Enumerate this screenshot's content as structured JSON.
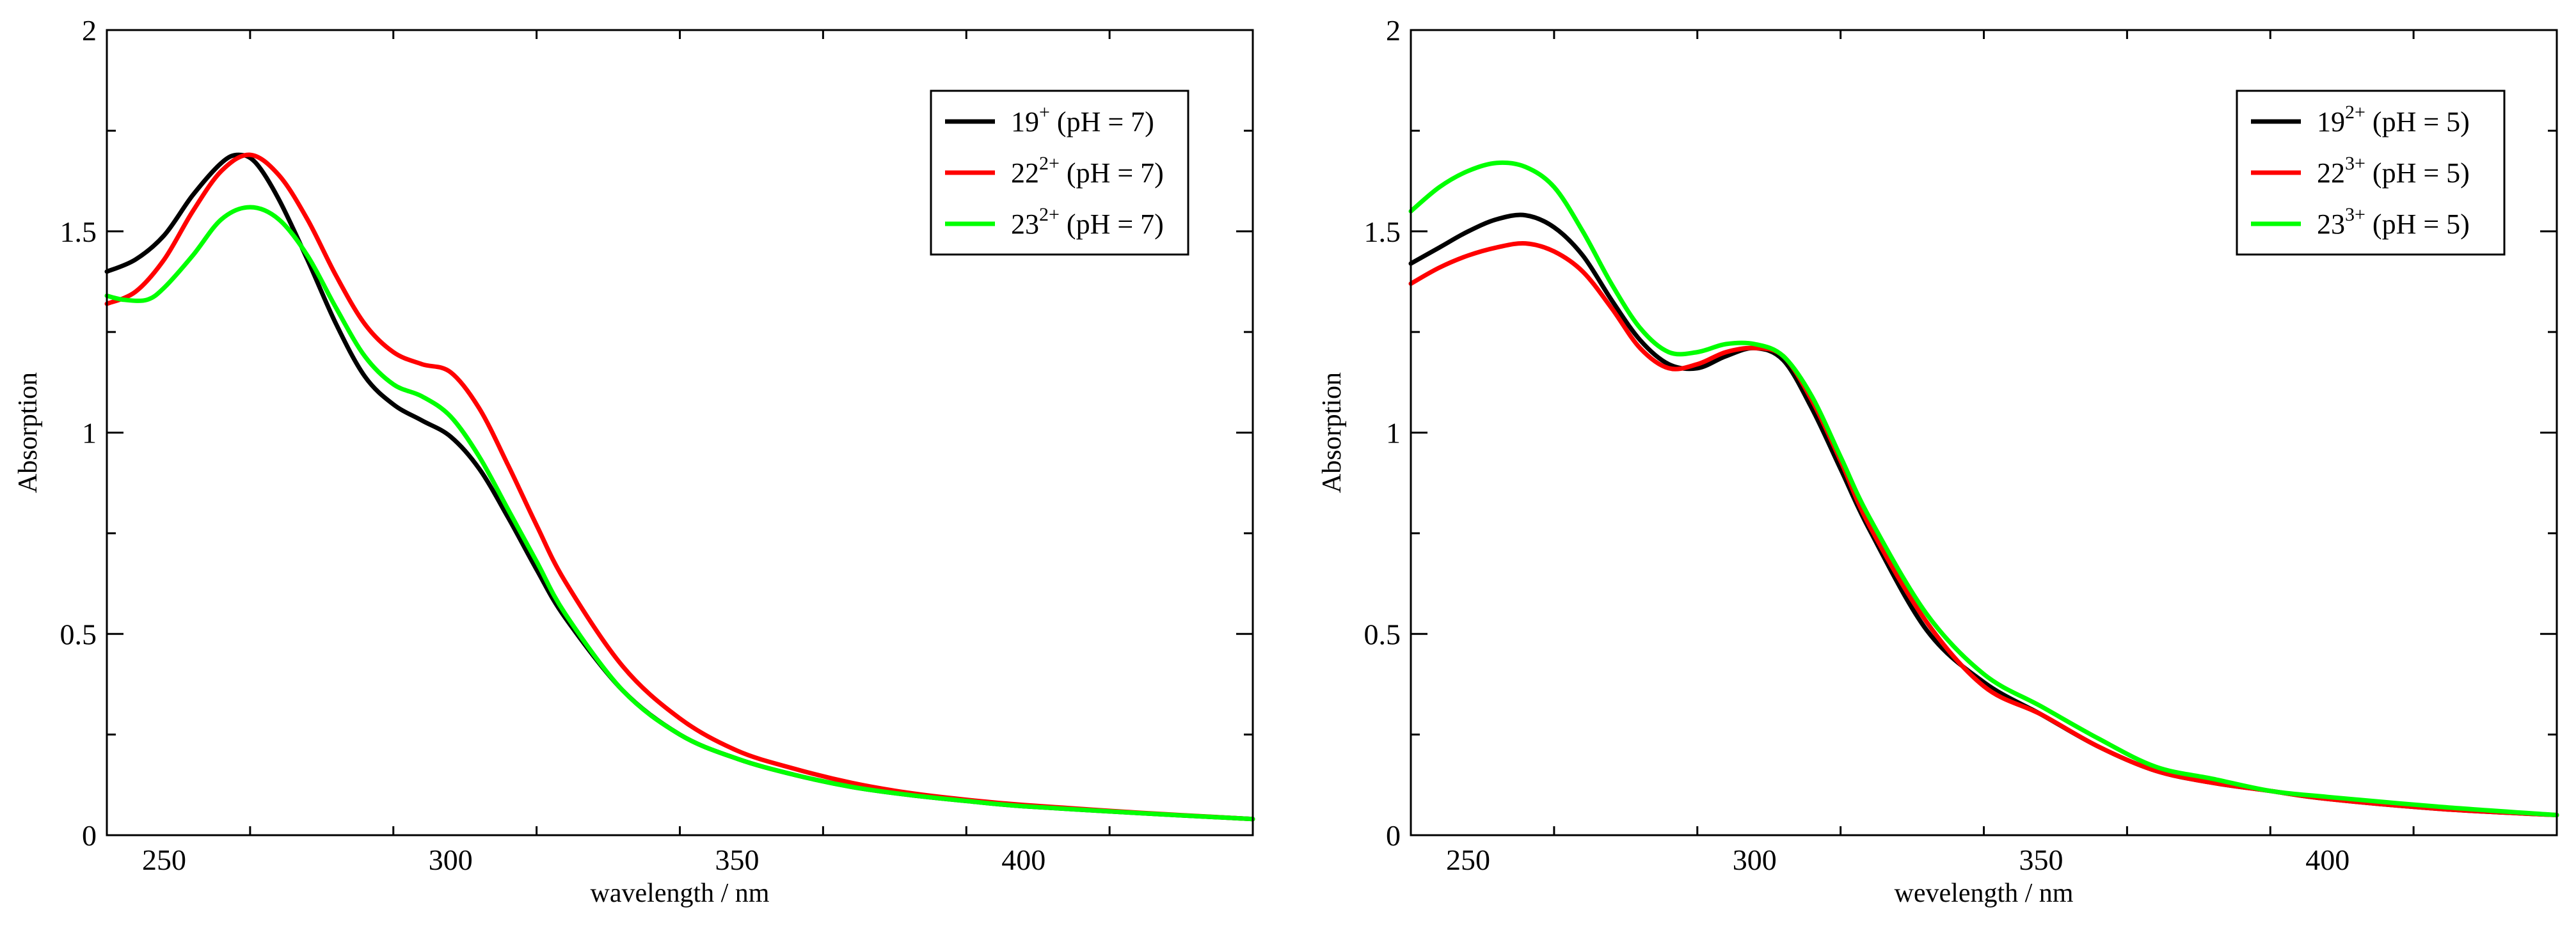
{
  "chart_data": [
    {
      "type": "line",
      "title": "",
      "xlabel": "wavelength / nm",
      "ylabel": "Absorption",
      "xlim": [
        240,
        440
      ],
      "ylim": [
        0,
        2
      ],
      "xticks": [
        250,
        300,
        350,
        400
      ],
      "yticks": [
        0,
        0.5,
        1,
        1.5,
        2
      ],
      "xtick_labels": [
        "250",
        "300",
        "350",
        "400"
      ],
      "ytick_labels": [
        "0",
        "0.5",
        "1",
        "1.5",
        "2"
      ],
      "legend_position": "top-right",
      "series": [
        {
          "name": "19+ (pH = 7)",
          "label_base": "19",
          "label_sup": "+",
          "label_suffix": "(pH = 7)",
          "color": "#000000",
          "x": [
            240,
            245,
            250,
            255,
            260,
            263,
            266,
            270,
            275,
            280,
            285,
            290,
            295,
            300,
            305,
            310,
            315,
            320,
            330,
            340,
            350,
            360,
            370,
            380,
            390,
            400,
            420,
            440
          ],
          "y": [
            1.4,
            1.43,
            1.49,
            1.59,
            1.67,
            1.69,
            1.67,
            1.58,
            1.43,
            1.27,
            1.14,
            1.07,
            1.03,
            0.99,
            0.91,
            0.79,
            0.66,
            0.54,
            0.36,
            0.25,
            0.19,
            0.15,
            0.12,
            0.1,
            0.085,
            0.072,
            0.055,
            0.04
          ]
        },
        {
          "name": "22 2+ (pH = 7)",
          "label_base": "22",
          "label_sup": "2+",
          "label_suffix": "(pH = 7)",
          "color": "#ff0000",
          "x": [
            240,
            245,
            250,
            255,
            260,
            265,
            270,
            275,
            280,
            285,
            290,
            295,
            300,
            305,
            310,
            315,
            320,
            330,
            340,
            350,
            360,
            370,
            380,
            390,
            400,
            420,
            440
          ],
          "y": [
            1.32,
            1.35,
            1.43,
            1.55,
            1.65,
            1.69,
            1.64,
            1.53,
            1.39,
            1.27,
            1.2,
            1.17,
            1.15,
            1.06,
            0.92,
            0.77,
            0.63,
            0.42,
            0.29,
            0.21,
            0.165,
            0.13,
            0.105,
            0.088,
            0.075,
            0.056,
            0.04
          ]
        },
        {
          "name": "23 2+ (pH = 7)",
          "label_base": "23",
          "label_sup": "2+",
          "label_suffix": "(pH = 7)",
          "color": "#00ff00",
          "x": [
            240,
            243,
            247,
            250,
            255,
            260,
            265,
            270,
            275,
            280,
            285,
            290,
            295,
            300,
            305,
            310,
            315,
            320,
            330,
            340,
            350,
            360,
            370,
            380,
            390,
            400,
            420,
            440
          ],
          "y": [
            1.34,
            1.33,
            1.33,
            1.36,
            1.44,
            1.53,
            1.56,
            1.53,
            1.44,
            1.31,
            1.19,
            1.12,
            1.09,
            1.04,
            0.94,
            0.81,
            0.68,
            0.55,
            0.36,
            0.25,
            0.19,
            0.15,
            0.12,
            0.1,
            0.085,
            0.072,
            0.055,
            0.04
          ]
        }
      ]
    },
    {
      "type": "line",
      "title": "",
      "xlabel": "wevelength / nm",
      "ylabel": "Absorption",
      "xlim": [
        240,
        440
      ],
      "ylim": [
        0,
        2
      ],
      "xticks": [
        250,
        300,
        350,
        400
      ],
      "yticks": [
        0,
        0.5,
        1,
        1.5,
        2
      ],
      "xtick_labels": [
        "250",
        "300",
        "350",
        "400"
      ],
      "ytick_labels": [
        "0",
        "0.5",
        "1",
        "1.5",
        "2"
      ],
      "legend_position": "top-right",
      "series": [
        {
          "name": "19 2+ (pH = 5)",
          "label_base": "19",
          "label_sup": "2+",
          "label_suffix": "(pH = 5)",
          "color": "#000000",
          "x": [
            240,
            245,
            250,
            255,
            260,
            265,
            270,
            275,
            280,
            285,
            290,
            295,
            300,
            305,
            310,
            315,
            320,
            330,
            340,
            350,
            360,
            370,
            380,
            390,
            400,
            420,
            440
          ],
          "y": [
            1.42,
            1.46,
            1.5,
            1.53,
            1.54,
            1.51,
            1.44,
            1.33,
            1.23,
            1.17,
            1.16,
            1.19,
            1.21,
            1.18,
            1.06,
            0.91,
            0.76,
            0.51,
            0.38,
            0.3,
            0.22,
            0.16,
            0.13,
            0.11,
            0.09,
            0.065,
            0.05
          ]
        },
        {
          "name": "22 3+ (pH = 5)",
          "label_base": "22",
          "label_sup": "3+",
          "label_suffix": "(pH = 5)",
          "color": "#ff0000",
          "x": [
            240,
            245,
            250,
            255,
            260,
            265,
            270,
            275,
            280,
            285,
            290,
            295,
            300,
            305,
            310,
            315,
            320,
            330,
            340,
            350,
            360,
            370,
            380,
            390,
            400,
            420,
            440
          ],
          "y": [
            1.37,
            1.41,
            1.44,
            1.46,
            1.47,
            1.45,
            1.4,
            1.31,
            1.21,
            1.16,
            1.17,
            1.2,
            1.21,
            1.19,
            1.08,
            0.93,
            0.77,
            0.53,
            0.37,
            0.3,
            0.22,
            0.16,
            0.13,
            0.11,
            0.09,
            0.065,
            0.05
          ]
        },
        {
          "name": "23 3+ (pH = 5)",
          "label_base": "23",
          "label_sup": "3+",
          "label_suffix": "(pH = 5)",
          "color": "#00ff00",
          "x": [
            240,
            245,
            250,
            255,
            260,
            265,
            270,
            275,
            280,
            285,
            290,
            295,
            300,
            305,
            310,
            315,
            320,
            330,
            340,
            350,
            360,
            370,
            380,
            390,
            400,
            420,
            440
          ],
          "y": [
            1.55,
            1.61,
            1.65,
            1.67,
            1.66,
            1.61,
            1.5,
            1.37,
            1.26,
            1.2,
            1.2,
            1.22,
            1.22,
            1.19,
            1.09,
            0.94,
            0.79,
            0.55,
            0.4,
            0.32,
            0.24,
            0.17,
            0.14,
            0.11,
            0.095,
            0.07,
            0.05
          ]
        }
      ]
    }
  ]
}
